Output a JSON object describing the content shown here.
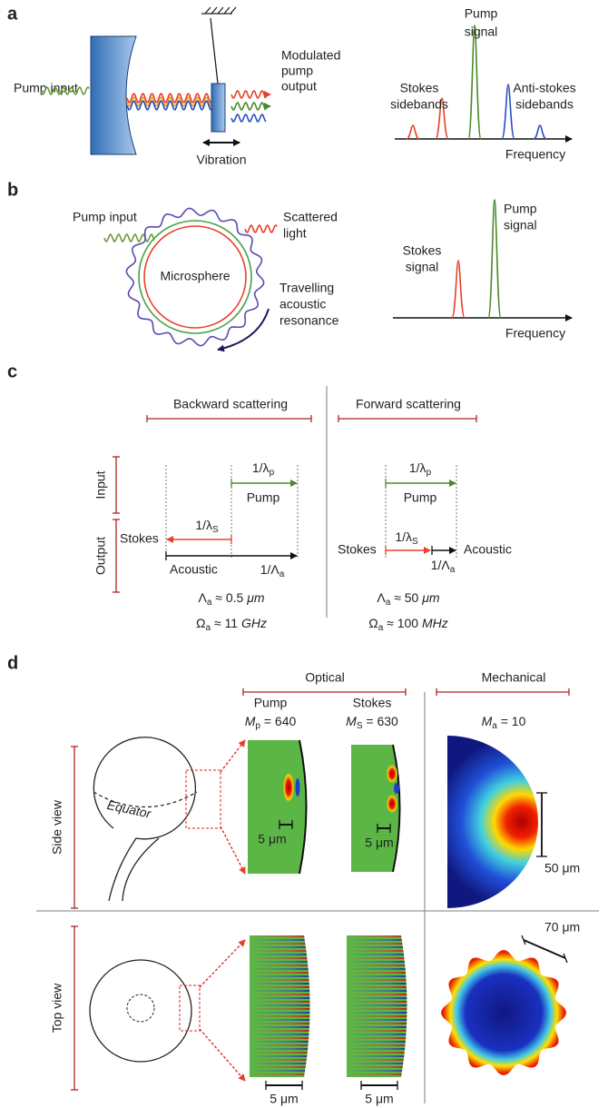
{
  "panel_a": {
    "label": "a",
    "pump_input": "Pump input",
    "output_label": [
      "Modulated",
      "pump",
      "output"
    ],
    "vibration": "Vibration",
    "stokes_label": [
      "Stokes",
      "sidebands"
    ],
    "pump_label": [
      "Pump",
      "signal"
    ],
    "anti_stokes_label": [
      "Anti-stokes",
      "sidebands"
    ],
    "axis_label": "Frequency"
  },
  "panel_b": {
    "label": "b",
    "pump_input": "Pump input",
    "scattered_label": [
      "Scattered",
      "light"
    ],
    "sphere_label": "Microsphere",
    "acoustic_label": [
      "Travelling",
      "acoustic",
      "resonance"
    ],
    "stokes_label": [
      "Stokes",
      "signal"
    ],
    "pump_label": [
      "Pump",
      "signal"
    ],
    "axis_label": "Frequency"
  },
  "panel_c": {
    "label": "c",
    "row_labels": [
      "Input",
      "Output"
    ],
    "backward": {
      "title": "Backward scattering",
      "pump_k": {
        "base": "1/λ",
        "sub": "p"
      },
      "pump": "Pump",
      "stokes_k": {
        "base": "1/λ",
        "sub": "S"
      },
      "stokes": "Stokes",
      "acoustic": "Acoustic",
      "acoustic_k": {
        "base": "1/Λ",
        "sub": "a"
      },
      "wavelength": {
        "base": "Λ",
        "sub": "a",
        "rest": " ≈ 0.5 ",
        "unit": "μm"
      },
      "frequency": {
        "base": "Ω",
        "sub": "a",
        "rest": " ≈ 11 ",
        "unit": "GHz"
      }
    },
    "forward": {
      "title": "Forward scattering",
      "pump_k": {
        "base": "1/λ",
        "sub": "p"
      },
      "pump": "Pump",
      "stokes_k": {
        "base": "1/λ",
        "sub": "S"
      },
      "stokes": "Stokes",
      "acoustic": "Acoustic",
      "acoustic_k": {
        "base": "1/Λ",
        "sub": "a"
      },
      "wavelength": {
        "base": "Λ",
        "sub": "a",
        "rest": " ≈ 50 ",
        "unit": "μm"
      },
      "frequency": {
        "base": "Ω",
        "sub": "a",
        "rest": " ≈ 100 ",
        "unit": "MHz"
      }
    }
  },
  "panel_d": {
    "label": "d",
    "optical": "Optical",
    "mechanical": "Mechanical",
    "pump": {
      "name": "Pump",
      "mode": {
        "base": "M",
        "sub": "p",
        "rest": " = 640"
      }
    },
    "stokes": {
      "name": "Stokes",
      "mode": {
        "base": "M",
        "sub": "S",
        "rest": " = 630"
      }
    },
    "mech_mode": {
      "base": "M",
      "sub": "a",
      "rest": " = 10"
    },
    "row_labels": [
      "Side view",
      "Top view"
    ],
    "equator": "Equator",
    "scale_bars": [
      "5 μm",
      "5 μm",
      "50 μm",
      "5 μm",
      "5 μm",
      "70 μm"
    ]
  }
}
